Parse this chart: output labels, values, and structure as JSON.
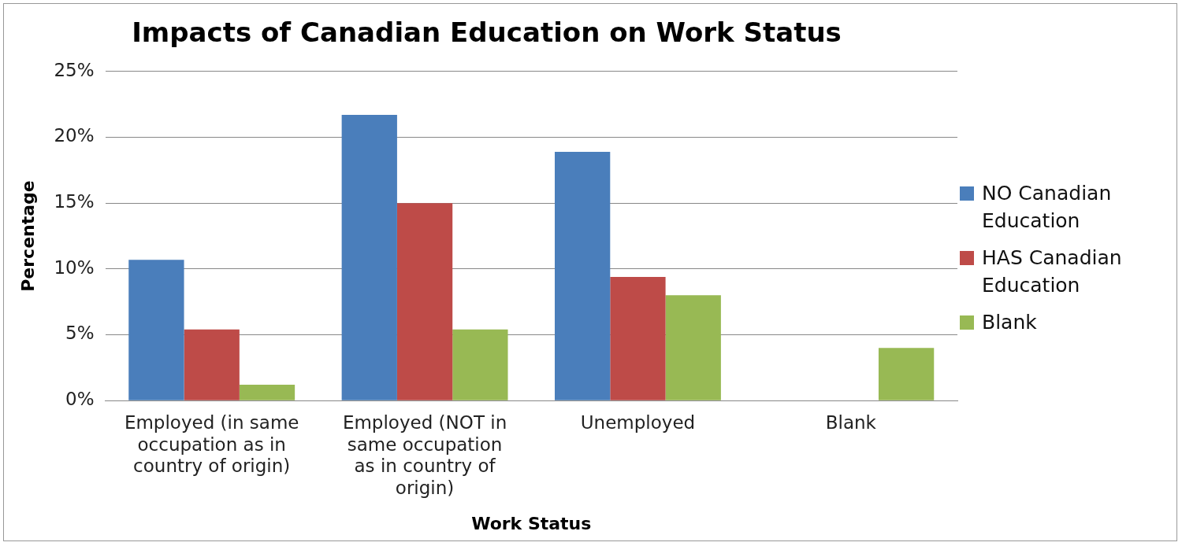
{
  "chart_data": {
    "type": "bar",
    "title": "Impacts of Canadian Education on Work Status",
    "xlabel": "Work Status",
    "ylabel": "Percentage",
    "categories": [
      "Employed (in same occupation as in country of origin)",
      "Employed (NOT in same occupation as in country of origin)",
      "Unemployed",
      "Blank"
    ],
    "series": [
      {
        "name": "NO Canadian Education",
        "color": "#4a7ebb",
        "values": [
          10.7,
          21.7,
          18.9,
          null
        ]
      },
      {
        "name": "HAS Canadian Education",
        "color": "#be4b48",
        "values": [
          5.4,
          15.0,
          9.4,
          null
        ]
      },
      {
        "name": "Blank",
        "color": "#98b954",
        "values": [
          1.2,
          5.4,
          8.0,
          4.0
        ]
      }
    ],
    "ylim": [
      0,
      25
    ],
    "yticks": [
      {
        "value": 0,
        "label": "0%"
      },
      {
        "value": 5,
        "label": "5%"
      },
      {
        "value": 10,
        "label": "10%"
      },
      {
        "value": 15,
        "label": "15%"
      },
      {
        "value": 20,
        "label": "20%"
      },
      {
        "value": 25,
        "label": "25%"
      }
    ],
    "grid": "y",
    "legend": "right"
  }
}
